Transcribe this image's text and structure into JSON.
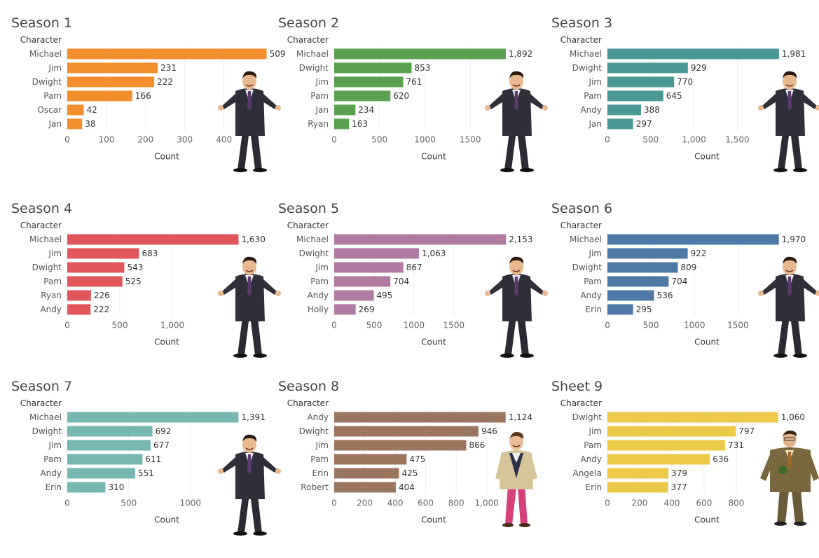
{
  "dashboard": {
    "row_header": "Character",
    "axis_label": "Count"
  },
  "chart_data": [
    {
      "type": "bar",
      "title": "Season 1",
      "color": "#F28E2B",
      "categories": [
        "Michael",
        "Jim",
        "Dwight",
        "Pam",
        "Oscar",
        "Jan"
      ],
      "values": [
        509,
        231,
        222,
        166,
        42,
        38
      ],
      "value_labels": [
        "509",
        "231",
        "222",
        "166",
        "42",
        "38"
      ],
      "xlim": [
        0,
        440
      ],
      "ticks": [
        0,
        100,
        200,
        300,
        400
      ],
      "tick_labels": [
        "0",
        "100",
        "200",
        "300",
        "400"
      ],
      "row_header": "Character",
      "xlabel": "Count",
      "figure": "michael"
    },
    {
      "type": "bar",
      "title": "Season 2",
      "color": "#59A14F",
      "categories": [
        "Michael",
        "Dwight",
        "Jim",
        "Pam",
        "Jan",
        "Ryan"
      ],
      "values": [
        1892,
        853,
        761,
        620,
        234,
        163
      ],
      "value_labels": [
        "1,892",
        "853",
        "761",
        "620",
        "234",
        "163"
      ],
      "xlim": [
        0,
        1900
      ],
      "ticks": [
        0,
        500,
        1000,
        1500
      ],
      "tick_labels": [
        "0",
        "500",
        "1000",
        "1500"
      ],
      "row_header": "Character",
      "xlabel": "Count",
      "figure": "michael"
    },
    {
      "type": "bar",
      "title": "Season 3",
      "color": "#499894",
      "categories": [
        "Michael",
        "Dwight",
        "Jim",
        "Pam",
        "Andy",
        "Jan"
      ],
      "values": [
        1981,
        929,
        770,
        645,
        388,
        297
      ],
      "value_labels": [
        "1,981",
        "929",
        "770",
        "645",
        "388",
        "297"
      ],
      "xlim": [
        0,
        1990
      ],
      "ticks": [
        0,
        500,
        1000,
        1500
      ],
      "tick_labels": [
        "0",
        "500",
        "1,000",
        "1,500"
      ],
      "row_header": "Character",
      "xlabel": "Count",
      "figure": "michael"
    },
    {
      "type": "bar",
      "title": "Season 4",
      "color": "#E15759",
      "categories": [
        "Michael",
        "Jim",
        "Dwight",
        "Pam",
        "Ryan",
        "Andy"
      ],
      "values": [
        1630,
        683,
        543,
        525,
        226,
        222
      ],
      "value_labels": [
        "1,630",
        "683",
        "543",
        "525",
        "226",
        "222"
      ],
      "xlim": [
        0,
        1640
      ],
      "ticks": [
        0,
        500,
        1000
      ],
      "tick_labels": [
        "0",
        "500",
        "1,000"
      ],
      "row_header": "Character",
      "xlabel": "Count",
      "figure": "michael"
    },
    {
      "type": "bar",
      "title": "Season 5",
      "color": "#B07AA1",
      "categories": [
        "Michael",
        "Dwight",
        "Jim",
        "Pam",
        "Andy",
        "Holly"
      ],
      "values": [
        2153,
        1063,
        867,
        704,
        495,
        269
      ],
      "value_labels": [
        "2,153",
        "1,063",
        "867",
        "704",
        "495",
        "269"
      ],
      "xlim": [
        0,
        2160
      ],
      "ticks": [
        0,
        500,
        1000,
        1500
      ],
      "tick_labels": [
        "0",
        "500",
        "1000",
        "1500"
      ],
      "row_header": "Character",
      "xlabel": "Count",
      "figure": "michael"
    },
    {
      "type": "bar",
      "title": "Season 6",
      "color": "#4E79A7",
      "categories": [
        "Michael",
        "Jim",
        "Dwight",
        "Pam",
        "Andy",
        "Erin"
      ],
      "values": [
        1970,
        922,
        809,
        704,
        536,
        295
      ],
      "value_labels": [
        "1,970",
        "922",
        "809",
        "704",
        "536",
        "295"
      ],
      "xlim": [
        0,
        1980
      ],
      "ticks": [
        0,
        500,
        1000,
        1500
      ],
      "tick_labels": [
        "0",
        "500",
        "1000",
        "1500"
      ],
      "row_header": "Character",
      "xlabel": "Count",
      "figure": "michael"
    },
    {
      "type": "bar",
      "title": "Season 7",
      "color": "#76B7B2",
      "categories": [
        "Michael",
        "Dwight",
        "Jim",
        "Pam",
        "Andy",
        "Erin"
      ],
      "values": [
        1391,
        692,
        677,
        611,
        551,
        310
      ],
      "value_labels": [
        "1,391",
        "692",
        "677",
        "611",
        "551",
        "310"
      ],
      "xlim": [
        0,
        1400
      ],
      "ticks": [
        0,
        500,
        1000
      ],
      "tick_labels": [
        "0",
        "500",
        "1000"
      ],
      "row_header": "Character",
      "xlabel": "Count",
      "figure": "michael"
    },
    {
      "type": "bar",
      "title": "Season 8",
      "color": "#9C755F",
      "categories": [
        "Andy",
        "Dwight",
        "Jim",
        "Pam",
        "Erin",
        "Robert"
      ],
      "values": [
        1124,
        946,
        866,
        475,
        425,
        404
      ],
      "value_labels": [
        "1,124",
        "946",
        "866",
        "475",
        "425",
        "404"
      ],
      "xlim": [
        0,
        1130
      ],
      "ticks": [
        0,
        200,
        400,
        600,
        800,
        1000
      ],
      "tick_labels": [
        "0",
        "200",
        "400",
        "600",
        "800",
        "1,000"
      ],
      "row_header": "Character",
      "xlabel": "Count",
      "figure": "andy"
    },
    {
      "type": "bar",
      "title": "Sheet 9",
      "color": "#EDC948",
      "categories": [
        "Dwight",
        "Jim",
        "Pam",
        "Andy",
        "Angela",
        "Erin"
      ],
      "values": [
        1060,
        797,
        731,
        636,
        379,
        377
      ],
      "value_labels": [
        "1,060",
        "797",
        "731",
        "636",
        "379",
        "377"
      ],
      "xlim": [
        0,
        1070
      ],
      "ticks": [
        0,
        200,
        400,
        600,
        800
      ],
      "tick_labels": [
        "0",
        "200",
        "400",
        "600",
        "800"
      ],
      "row_header": "Character",
      "xlabel": "Count",
      "figure": "dwight"
    }
  ]
}
